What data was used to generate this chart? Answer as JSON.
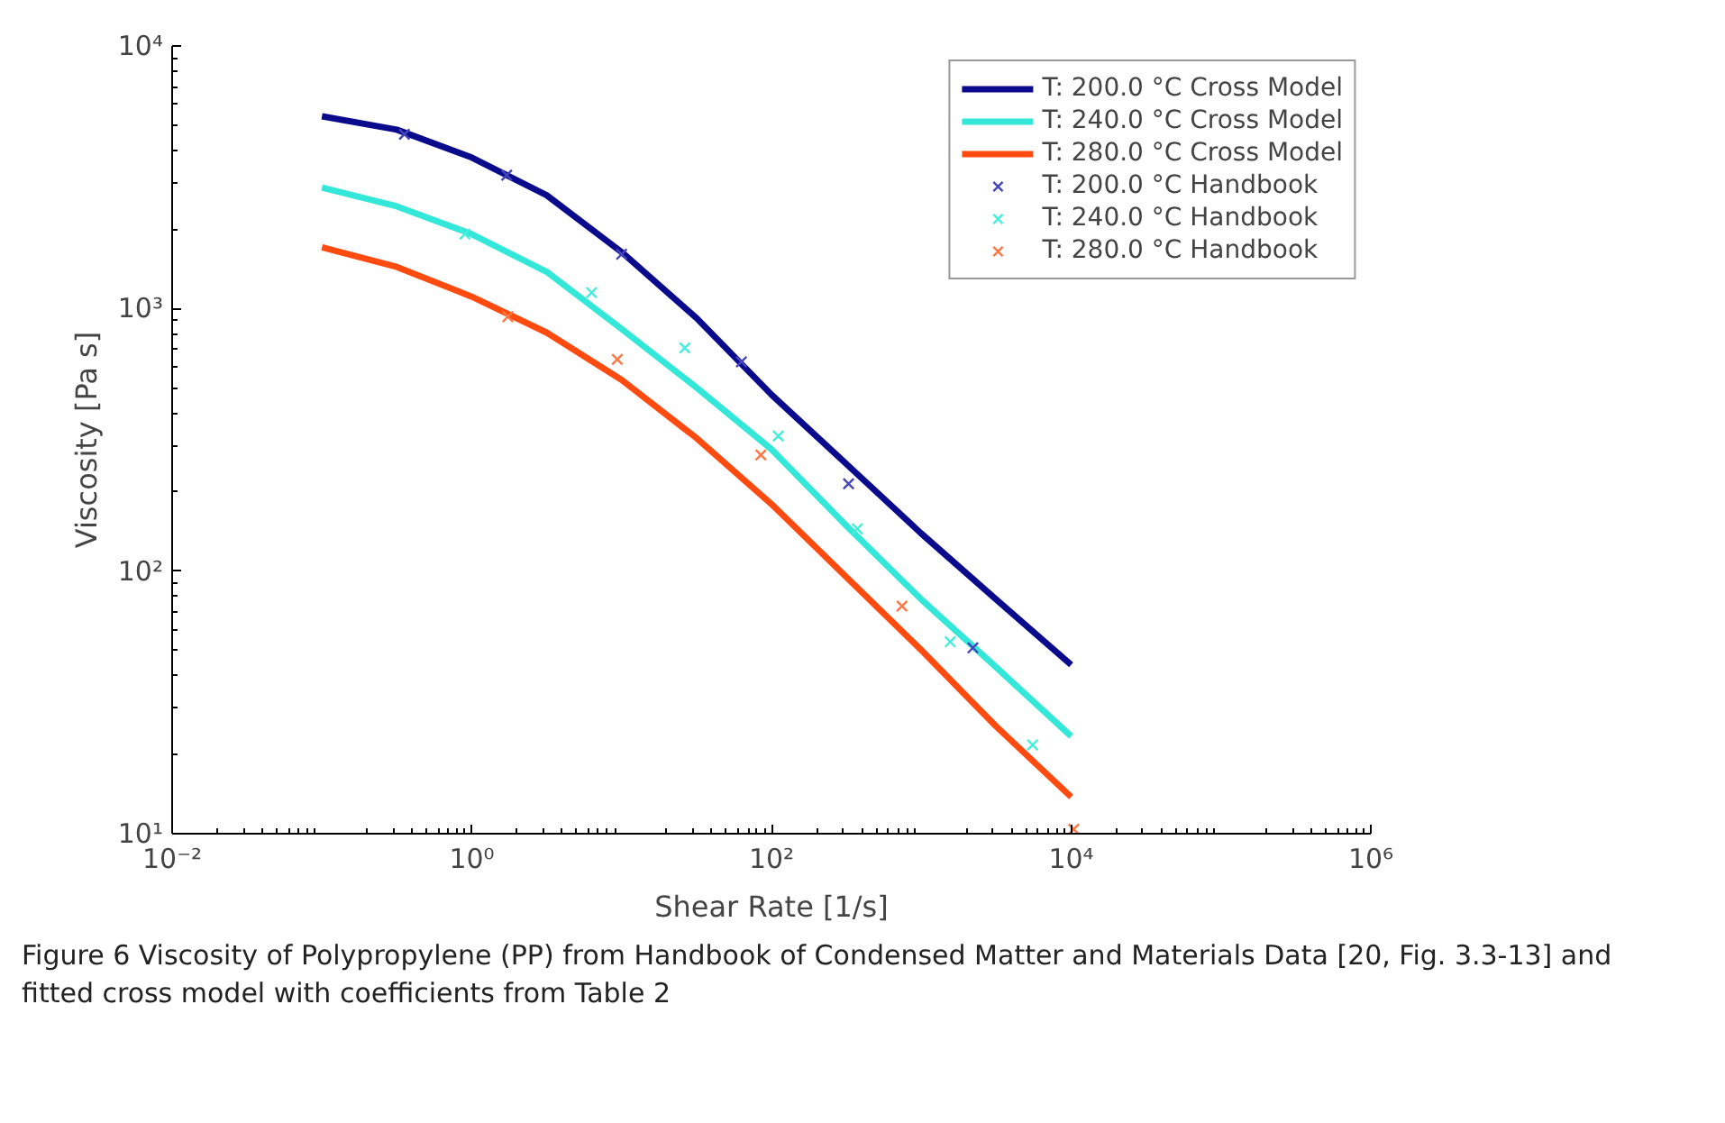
{
  "chart_data": {
    "type": "line",
    "xlabel": "Shear Rate [1/s]",
    "ylabel": "Viscosity [Pa s]",
    "log": "xy",
    "grid": false,
    "legend": "top right",
    "xlim": [
      0.01,
      1000000
    ],
    "ylim": [
      10,
      10000
    ],
    "xticks": [
      {
        "value": 0.01,
        "label": "10⁻²"
      },
      {
        "value": 1,
        "label": "10⁰"
      },
      {
        "value": 100,
        "label": "10²"
      },
      {
        "value": 10000,
        "label": "10⁴"
      },
      {
        "value": 1000000,
        "label": "10⁶"
      }
    ],
    "yticks": [
      {
        "value": 10,
        "label": "10¹"
      },
      {
        "value": 100,
        "label": "10²"
      },
      {
        "value": 1000,
        "label": "10³"
      },
      {
        "value": 10000,
        "label": "10⁴"
      }
    ],
    "series": [
      {
        "name": "T: 200.0 °C Cross Model",
        "color": "#0a0a8c",
        "marker": "none",
        "x": [
          0.1,
          0.316,
          1,
          3.16,
          10,
          31.6,
          100,
          316,
          1000,
          3162,
          10000
        ],
        "values": [
          5400,
          4800,
          3760,
          2700,
          1640,
          920,
          470,
          256,
          139,
          78,
          44
        ]
      },
      {
        "name": "T: 240.0 °C Cross Model",
        "color": "#33e8d8",
        "marker": "none",
        "x": [
          0.1,
          0.316,
          1,
          3.16,
          10,
          31.6,
          100,
          316,
          1000,
          3162,
          10000
        ],
        "values": [
          2890,
          2450,
          1920,
          1380,
          836,
          500,
          291,
          149,
          78,
          43,
          23.5
        ]
      },
      {
        "name": "T: 280.0 °C Cross Model",
        "color": "#ff4a10",
        "marker": "none",
        "x": [
          0.1,
          0.316,
          1,
          3.16,
          10,
          31.6,
          100,
          316,
          1000,
          3162,
          10000
        ],
        "values": [
          1710,
          1440,
          1110,
          810,
          535,
          321,
          180,
          95,
          50,
          25.6,
          13.8
        ]
      },
      {
        "name": "T: 200.0 °C Handbook",
        "type": "scatter",
        "color": "#4444bb",
        "marker": "cross",
        "x": [
          0.355,
          1.71,
          10,
          63,
          327,
          2210
        ],
        "values": [
          4610,
          3220,
          1610,
          627,
          215,
          51
        ]
      },
      {
        "name": "T: 240.0 °C Handbook",
        "type": "scatter",
        "color": "#44eedd",
        "marker": "cross",
        "x": [
          0.9,
          6.3,
          26.4,
          111,
          374,
          1560,
          5530
        ],
        "values": [
          1920,
          1150,
          708,
          327,
          145,
          53.8,
          21.8
        ]
      },
      {
        "name": "T: 280.0 °C Handbook",
        "type": "scatter",
        "color": "#ff7744",
        "marker": "cross",
        "x": [
          1.74,
          9.35,
          85,
          743,
          10400
        ],
        "values": [
          931,
          640,
          277,
          73.6,
          10.4
        ]
      }
    ],
    "annotations": [
      "Figure 6  Viscosity of Polypropylene (PP) from Handbook of Condensed Matter and Materials Data [20, Fig. 3.3-13] and fitted cross model with coefficients from Table 2"
    ]
  }
}
